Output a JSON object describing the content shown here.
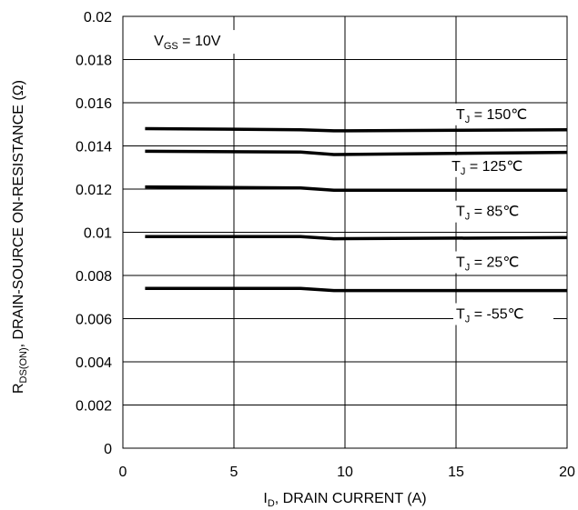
{
  "chart_data": {
    "type": "line",
    "xlabel": {
      "main": "I",
      "sub": "D",
      "rest": ", DRAIN CURRENT (A)"
    },
    "ylabel": {
      "main": "R",
      "sub": "DS(ON)",
      "rest": ",   DRAIN-SOURCE ON-RESISTANCE (Ω)"
    },
    "xlim": [
      0,
      20
    ],
    "ylim": [
      0,
      0.02
    ],
    "xticks": [
      0,
      5,
      10,
      15,
      20
    ],
    "xtick_labels": [
      "0",
      "5",
      "10",
      "15",
      "20"
    ],
    "yticks": [
      0,
      0.002,
      0.004,
      0.006,
      0.008,
      0.01,
      0.012,
      0.014,
      0.016,
      0.018,
      0.02
    ],
    "ytick_labels": [
      "0",
      "0.002",
      "0.004",
      "0.006",
      "0.008",
      "0.01",
      "0.012",
      "0.014",
      "0.016",
      "0.018",
      "0.02"
    ],
    "grid": true,
    "condition": {
      "main": "V",
      "sub": "GS",
      "rest": " = 10V"
    },
    "series": [
      {
        "name": "T_J = 150℃",
        "label_main": "T",
        "label_sub": "J",
        "label_rest": " = 150℃",
        "x": [
          1,
          8,
          9.5,
          20
        ],
        "y": [
          0.0148,
          0.01475,
          0.0147,
          0.01475
        ]
      },
      {
        "name": "T_J = 125℃",
        "label_main": "T",
        "label_sub": "J",
        "label_rest": " = 125℃",
        "x": [
          1,
          8,
          9.5,
          20
        ],
        "y": [
          0.01375,
          0.01372,
          0.0136,
          0.0137
        ]
      },
      {
        "name": "T_J = 85℃",
        "label_main": "T",
        "label_sub": "J",
        "label_rest": " = 85℃",
        "x": [
          1,
          8,
          9.5,
          20
        ],
        "y": [
          0.0121,
          0.01205,
          0.01195,
          0.01195
        ]
      },
      {
        "name": "T_J = 25℃",
        "label_main": "T",
        "label_sub": "J",
        "label_rest": " = 25℃",
        "x": [
          1,
          8,
          9.5,
          20
        ],
        "y": [
          0.0098,
          0.0098,
          0.0097,
          0.00975
        ]
      },
      {
        "name": "T_J = -55℃",
        "label_main": "T",
        "label_sub": "J",
        "label_rest": " = -55℃",
        "x": [
          1,
          8,
          9.5,
          20
        ],
        "y": [
          0.0074,
          0.0074,
          0.0073,
          0.0073
        ]
      }
    ]
  }
}
